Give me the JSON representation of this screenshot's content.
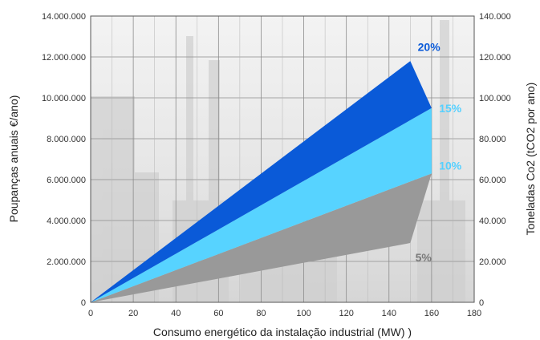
{
  "chart_data": {
    "type": "area",
    "xlabel": "Consumo energético da instalação industrial (MW) )",
    "ylabel_left": "Poupanças anuais €/ano)",
    "ylabel_right": "Toneladas Co2 (tCO2 por ano)",
    "xlim": [
      0,
      180
    ],
    "ylim_left": [
      0,
      14000000
    ],
    "ylim_right": [
      0,
      140000
    ],
    "x_ticks": [
      "0",
      "20",
      "40",
      "60",
      "80",
      "100",
      "120",
      "140",
      "160",
      "180"
    ],
    "y_ticks_left": [
      "0",
      "2.000.000",
      "4.000.000",
      "6.000.000",
      "8.000.000",
      "10.000.000",
      "12.000.000",
      "14.000.000"
    ],
    "y_ticks_right": [
      "0",
      "20.000",
      "40.000",
      "60.000",
      "80.000",
      "100.000",
      "120.000",
      "140.000"
    ],
    "grid": true,
    "series": [
      {
        "name": "5%",
        "color": "#999999",
        "label_color": "#7a7a7a",
        "points": [
          [
            0,
            0
          ],
          [
            150,
            2900000
          ],
          [
            160,
            6300000
          ]
        ]
      },
      {
        "name": "10%",
        "color": "#57d3ff",
        "label_color": "#55d0ff",
        "points": [
          [
            0,
            0
          ],
          [
            160,
            6300000
          ],
          [
            160,
            9500000
          ]
        ]
      },
      {
        "name": "15%",
        "color": "#55d0ff",
        "label_color": "#55d0ff",
        "points": [
          [
            0,
            0
          ],
          [
            160,
            9500000
          ]
        ]
      },
      {
        "name": "20%",
        "color": "#0a5ad8",
        "label_color": "#0a5ad8",
        "points": [
          [
            0,
            0
          ],
          [
            150,
            11800000
          ],
          [
            160,
            9500000
          ]
        ]
      }
    ]
  }
}
